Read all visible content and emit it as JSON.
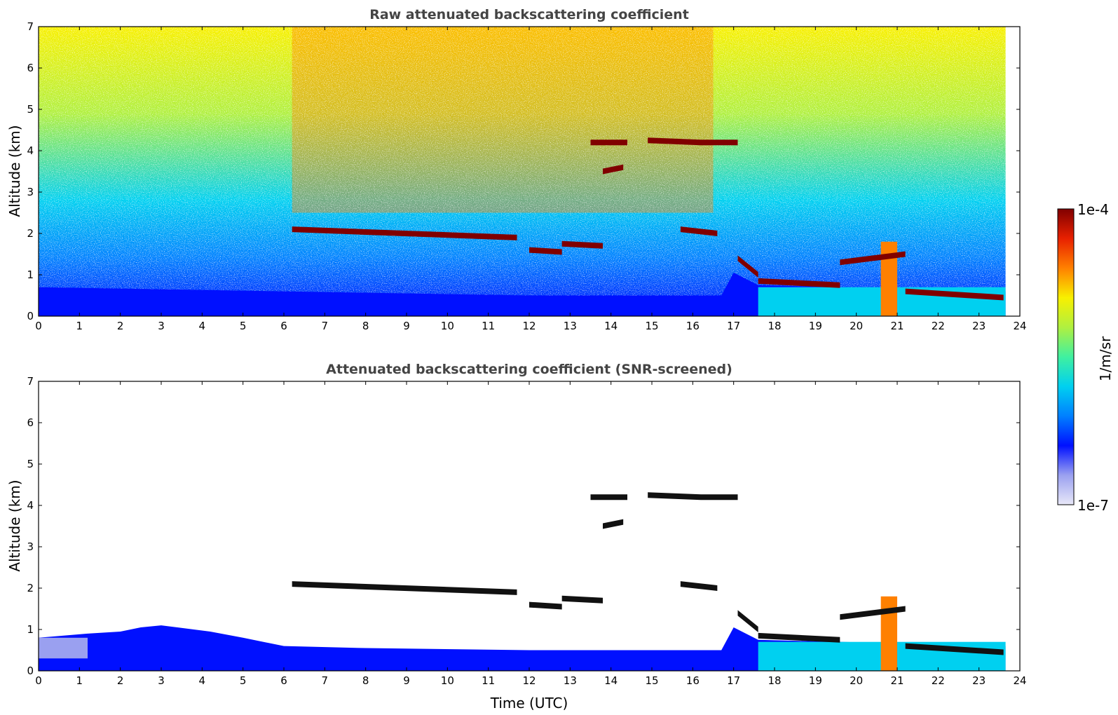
{
  "chart_data": [
    {
      "type": "heatmap",
      "title": "Raw attenuated backscattering coefficient",
      "xlabel": "",
      "ylabel": "Altitude (km)",
      "xlim": [
        0,
        24
      ],
      "ylim": [
        0,
        7
      ],
      "x_ticks": [
        "0",
        "1",
        "2",
        "3",
        "4",
        "5",
        "6",
        "7",
        "8",
        "9",
        "10",
        "11",
        "12",
        "13",
        "14",
        "15",
        "16",
        "17",
        "18",
        "19",
        "20",
        "21",
        "22",
        "23",
        "24"
      ],
      "y_ticks": [
        "0",
        "1",
        "2",
        "3",
        "4",
        "5",
        "6",
        "7"
      ],
      "data_end_time": 23.65,
      "cloud_layers": [
        {
          "t": [
            6.2,
            11.7
          ],
          "alt_start": 2.1,
          "alt_end": 1.9,
          "value": "high"
        },
        {
          "t": [
            12.0,
            12.8
          ],
          "alt_start": 1.6,
          "alt_end": 1.55,
          "value": "high"
        },
        {
          "t": [
            12.8,
            13.8
          ],
          "alt_start": 1.75,
          "alt_end": 1.7,
          "value": "high"
        },
        {
          "t": [
            13.5,
            14.4
          ],
          "alt_start": 4.2,
          "alt_end": 4.2,
          "value": "high"
        },
        {
          "t": [
            13.8,
            14.3
          ],
          "alt_start": 3.5,
          "alt_end": 3.6,
          "value": "high"
        },
        {
          "t": [
            14.9,
            16.2
          ],
          "alt_start": 4.25,
          "alt_end": 4.2,
          "value": "high"
        },
        {
          "t": [
            16.2,
            17.1
          ],
          "alt_start": 4.2,
          "alt_end": 4.2,
          "value": "high"
        },
        {
          "t": [
            15.7,
            16.6
          ],
          "alt_start": 2.1,
          "alt_end": 2.0,
          "value": "high"
        },
        {
          "t": [
            17.1,
            17.6
          ],
          "alt_start": 1.4,
          "alt_end": 1.0,
          "value": "high"
        },
        {
          "t": [
            17.6,
            19.6
          ],
          "alt_start": 0.85,
          "alt_end": 0.75,
          "value": "high"
        },
        {
          "t": [
            19.6,
            21.2
          ],
          "alt_start": 1.3,
          "alt_end": 1.5,
          "value": "high"
        },
        {
          "t": [
            21.2,
            23.6
          ],
          "alt_start": 0.6,
          "alt_end": 0.45,
          "value": "high"
        }
      ],
      "boundary_layer_top_km": [
        [
          0,
          0.7
        ],
        [
          6,
          0.6
        ],
        [
          12,
          0.5
        ],
        [
          16.7,
          0.5
        ],
        [
          17,
          1.05
        ],
        [
          17.6,
          0.75
        ],
        [
          23.65,
          0.6
        ]
      ],
      "aerosol_plume": {
        "t": [
          20.6,
          21.0
        ],
        "alt": [
          0,
          1.8
        ],
        "value": "high"
      }
    },
    {
      "type": "heatmap",
      "title": "Attenuated backscattering coefficient (SNR-screened)",
      "xlabel": "Time (UTC)",
      "ylabel": "Altitude (km)",
      "xlim": [
        0,
        24
      ],
      "ylim": [
        0,
        7
      ],
      "x_ticks": [
        "0",
        "1",
        "2",
        "3",
        "4",
        "5",
        "6",
        "7",
        "8",
        "9",
        "10",
        "11",
        "12",
        "13",
        "14",
        "15",
        "16",
        "17",
        "18",
        "19",
        "20",
        "21",
        "22",
        "23",
        "24"
      ],
      "y_ticks": [
        "0",
        "1",
        "2",
        "3",
        "4",
        "5",
        "6",
        "7"
      ],
      "screened_boundary_layer_top_km": [
        [
          0,
          0.8
        ],
        [
          1.2,
          0.9
        ],
        [
          2,
          0.95
        ],
        [
          2.5,
          1.05
        ],
        [
          3,
          1.1
        ],
        [
          4.2,
          0.95
        ],
        [
          5,
          0.8
        ],
        [
          6,
          0.6
        ],
        [
          8,
          0.55
        ],
        [
          12,
          0.5
        ],
        [
          16.7,
          0.5
        ],
        [
          17,
          1.05
        ],
        [
          17.6,
          0.75
        ],
        [
          23.65,
          0.6
        ]
      ]
    }
  ],
  "colorbar": {
    "label": "1/m/sr",
    "max_label": "1e-4",
    "min_label": "1e-7",
    "scale": "log",
    "colormap": [
      "#e8e8f8",
      "#9aa0f0",
      "#0010ff",
      "#0080ff",
      "#00d0f0",
      "#40f0a0",
      "#b0f040",
      "#f8f000",
      "#ff8000",
      "#e82000",
      "#800000"
    ]
  }
}
